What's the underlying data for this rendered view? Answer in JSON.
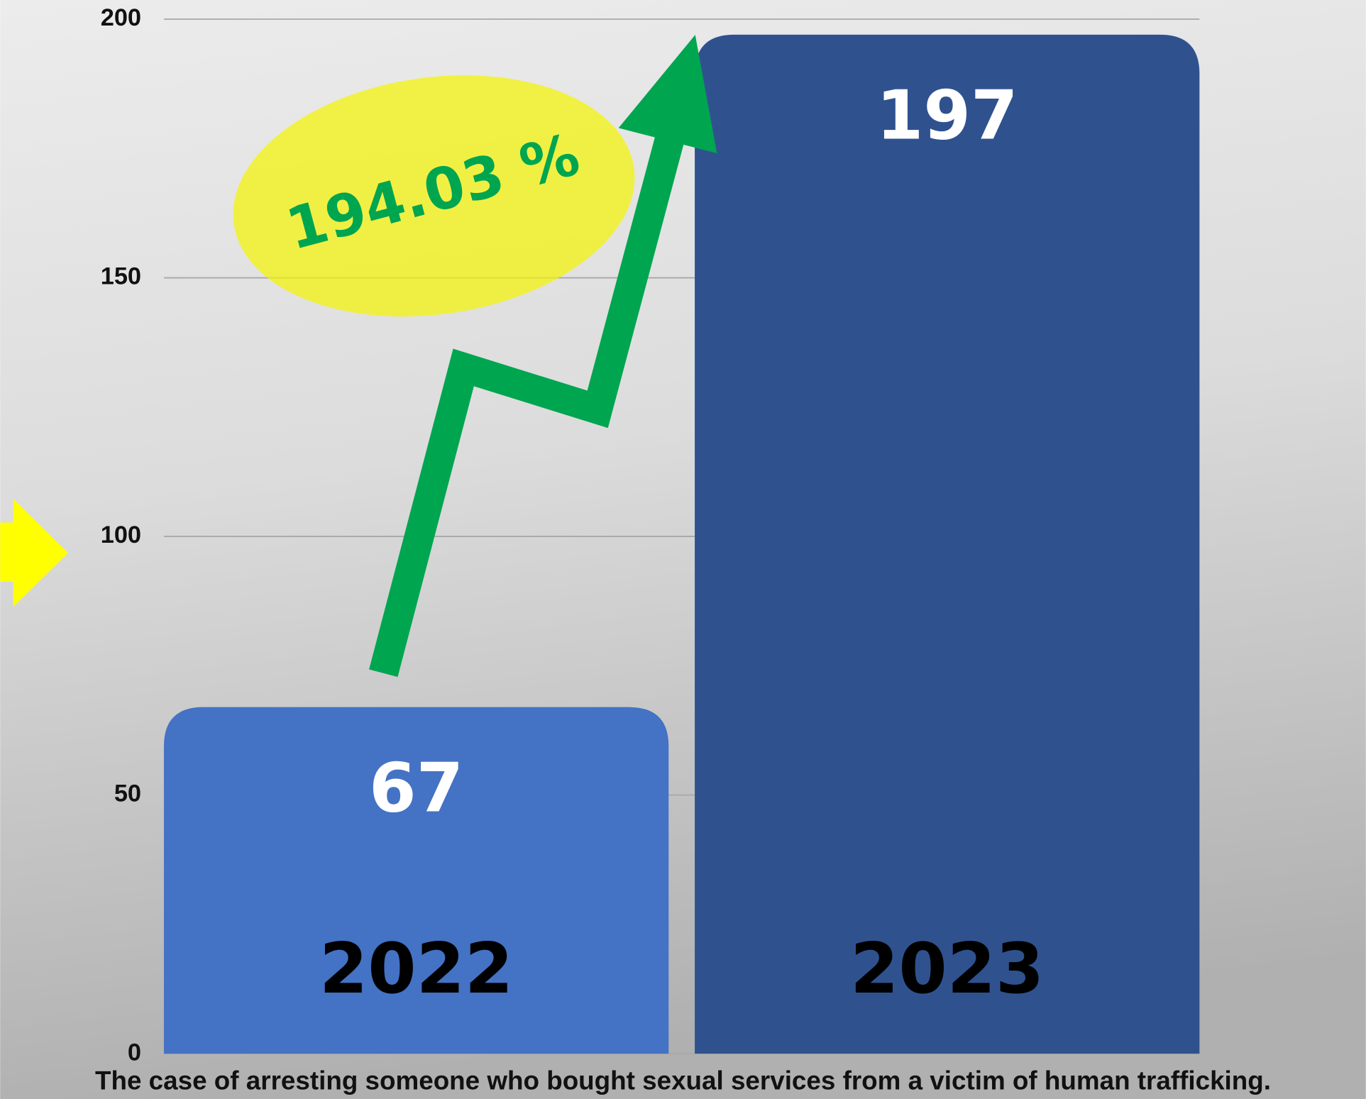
{
  "chart_data": {
    "type": "bar",
    "title": "The case of arresting someone who bought sexual services from a victim of human trafficking.",
    "categories": [
      "2022",
      "2023"
    ],
    "series": [
      {
        "name": null,
        "values": [
          67,
          197
        ],
        "colors": [
          "#4472c4",
          "#2f528f"
        ]
      }
    ],
    "ylim": [
      0,
      200
    ],
    "yticks": [
      0,
      50,
      100,
      150,
      200
    ],
    "grid": true,
    "annotation": "194.03 %"
  }
}
